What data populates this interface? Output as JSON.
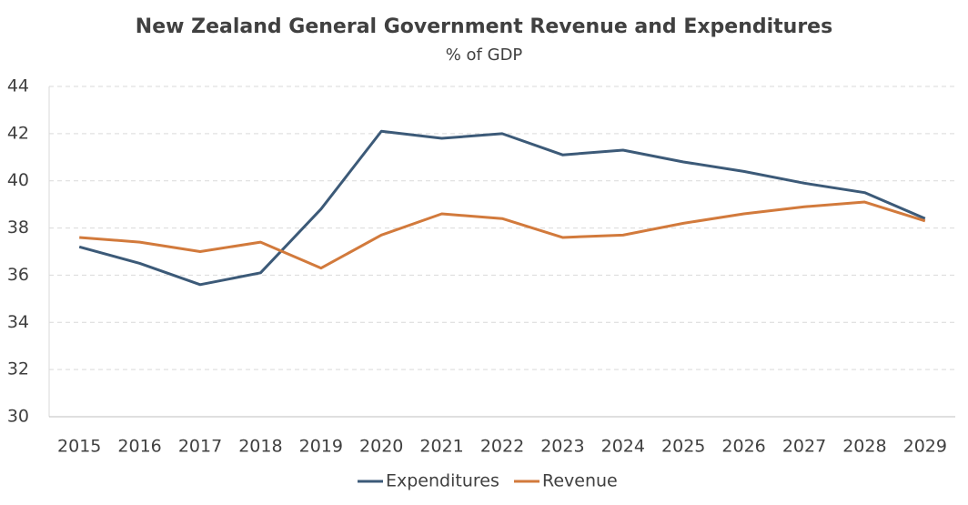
{
  "chart_data": {
    "type": "line",
    "title": "New Zealand General Government Revenue and Expenditures",
    "subtitle": "% of GDP",
    "categories": [
      "2015",
      "2016",
      "2017",
      "2018",
      "2019",
      "2020",
      "2021",
      "2022",
      "2023",
      "2024",
      "2025",
      "2026",
      "2027",
      "2028",
      "2029"
    ],
    "series": [
      {
        "name": "Expenditures",
        "color": "#3c5a78",
        "values": [
          37.2,
          36.5,
          35.6,
          36.1,
          38.8,
          42.1,
          41.8,
          42.0,
          41.1,
          41.3,
          40.8,
          40.4,
          39.9,
          39.5,
          38.4
        ]
      },
      {
        "name": "Revenue",
        "color": "#d27a3c",
        "values": [
          37.6,
          37.4,
          37.0,
          37.4,
          36.3,
          37.7,
          38.6,
          38.4,
          37.6,
          37.7,
          38.2,
          38.6,
          38.9,
          39.1,
          38.3
        ]
      }
    ],
    "ylim": [
      30,
      44
    ],
    "yticks": [
      30,
      32,
      34,
      36,
      38,
      40,
      42,
      44
    ],
    "grid": true,
    "legend": "bottom"
  }
}
